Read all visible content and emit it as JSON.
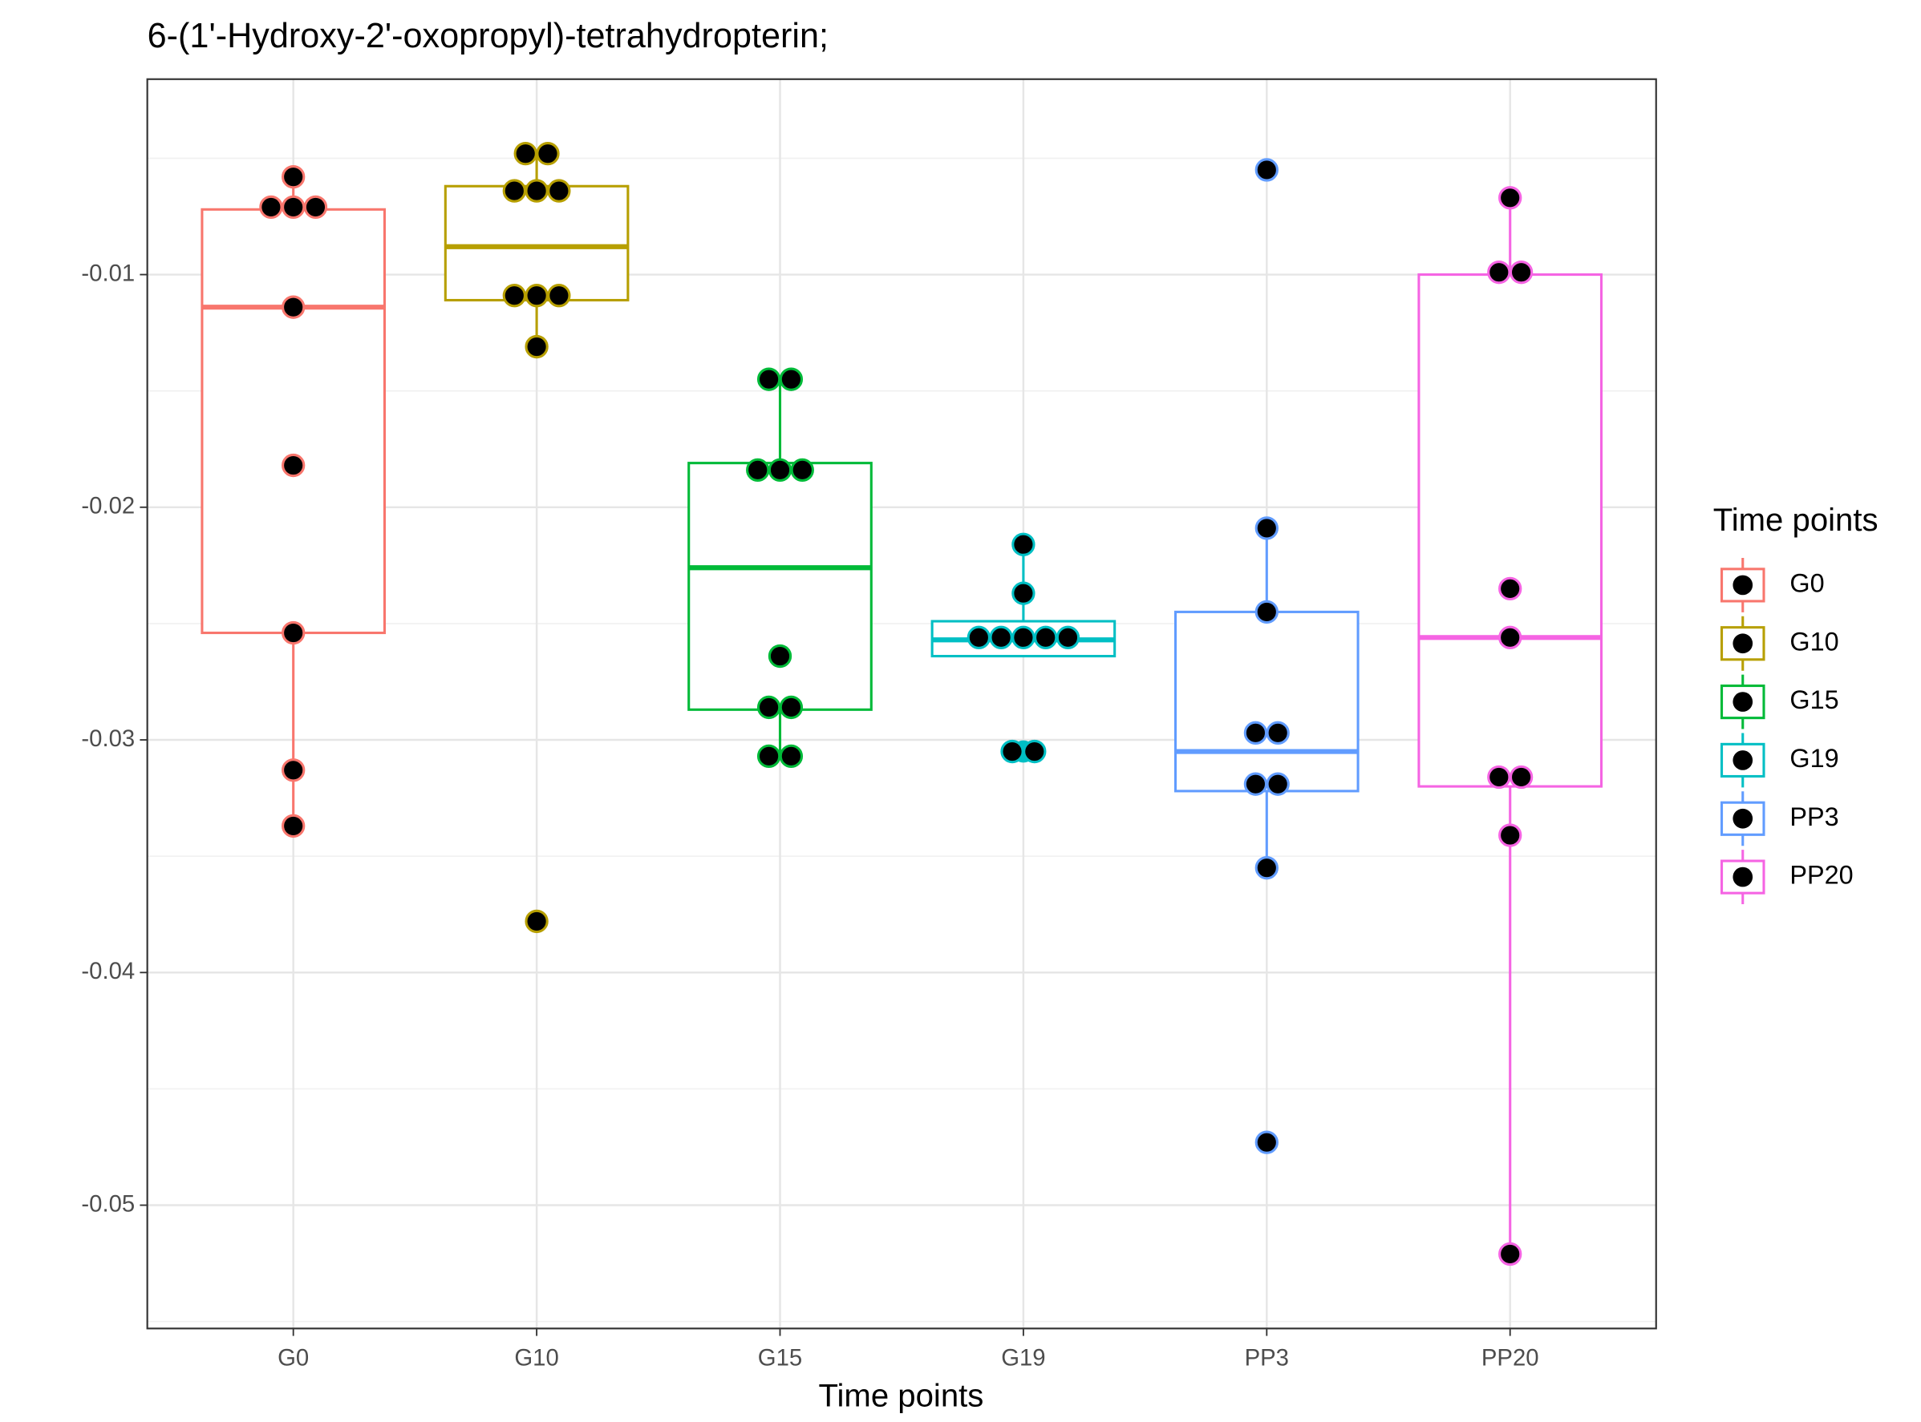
{
  "chart_data": {
    "type": "box",
    "title": "6-(1'-Hydroxy-2'-oxopropyl)-tetrahydropterin;",
    "x_label": "Time points",
    "legend_title": "Time points",
    "legend": "right",
    "grid": true,
    "ylim": [
      -0.0553,
      -0.0016
    ],
    "yticks": [
      -0.05,
      -0.04,
      -0.03,
      -0.02,
      -0.01
    ],
    "y_minor_grid": [
      -0.055,
      -0.045,
      -0.035,
      -0.025,
      -0.015,
      -0.005
    ],
    "categories": [
      "G0",
      "G10",
      "G15",
      "G19",
      "PP3",
      "PP20"
    ],
    "series": [
      {
        "name": "G0",
        "color": "#F8766D",
        "q1": -0.0254,
        "median": -0.0114,
        "q3": -0.0072,
        "whisker_low": -0.0337,
        "whisker_high": -0.0058,
        "outliers": [],
        "points": [
          -0.0058,
          -0.0071,
          -0.0071,
          -0.0071,
          -0.0114,
          -0.0182,
          -0.0254,
          -0.0313,
          -0.0337
        ]
      },
      {
        "name": "G10",
        "color": "#B79F00",
        "q1": -0.0111,
        "median": -0.0088,
        "q3": -0.0062,
        "whisker_low": -0.0131,
        "whisker_high": -0.0048,
        "outliers": [
          -0.0378
        ],
        "points": [
          -0.0048,
          -0.0048,
          -0.0064,
          -0.0064,
          -0.0064,
          -0.0109,
          -0.0109,
          -0.0109,
          -0.0131,
          -0.0378
        ]
      },
      {
        "name": "G15",
        "color": "#00BA38",
        "q1": -0.0287,
        "median": -0.0226,
        "q3": -0.0181,
        "whisker_low": -0.0307,
        "whisker_high": -0.0145,
        "outliers": [],
        "points": [
          -0.0145,
          -0.0145,
          -0.0184,
          -0.0184,
          -0.0184,
          -0.0264,
          -0.0286,
          -0.0286,
          -0.0307,
          -0.0307
        ]
      },
      {
        "name": "G19",
        "color": "#00BFC4",
        "q1": -0.0264,
        "median": -0.0257,
        "q3": -0.0249,
        "whisker_low": -0.0264,
        "whisker_high": -0.0216,
        "outliers": [
          -0.0305
        ],
        "points": [
          -0.0216,
          -0.0237,
          -0.0256,
          -0.0256,
          -0.0256,
          -0.0256,
          -0.0256,
          -0.0305,
          -0.0305
        ]
      },
      {
        "name": "PP3",
        "color": "#619CFF",
        "q1": -0.0322,
        "median": -0.0305,
        "q3": -0.0245,
        "whisker_low": -0.0355,
        "whisker_high": -0.0209,
        "outliers": [
          -0.0055,
          -0.0473
        ],
        "points": [
          -0.0055,
          -0.0209,
          -0.0245,
          -0.0297,
          -0.0297,
          -0.0319,
          -0.0319,
          -0.0355,
          -0.0473
        ]
      },
      {
        "name": "PP20",
        "color": "#F564E3",
        "q1": -0.032,
        "median": -0.0256,
        "q3": -0.01,
        "whisker_low": -0.0521,
        "whisker_high": -0.0067,
        "outliers": [],
        "points": [
          -0.0067,
          -0.0099,
          -0.0099,
          -0.0235,
          -0.0256,
          -0.0316,
          -0.0316,
          -0.0341,
          -0.0521
        ]
      }
    ]
  }
}
